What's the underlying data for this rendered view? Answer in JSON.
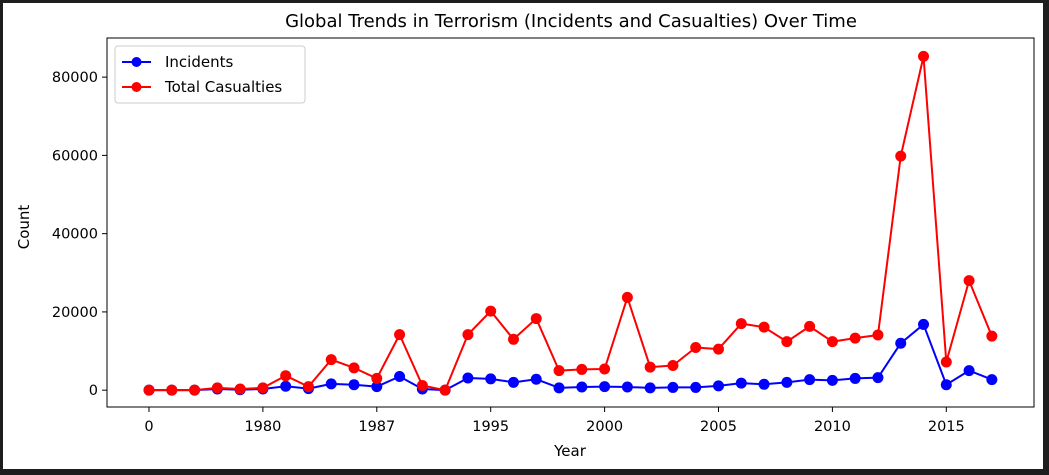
{
  "chart_data": {
    "type": "line",
    "title": "Global Trends in Terrorism (Incidents and Casualties) Over Time",
    "xlabel": "Year",
    "ylabel": "Count",
    "x_tick_labels": [
      "0",
      "1980",
      "1987",
      "1995",
      "2000",
      "2005",
      "2010",
      "2015"
    ],
    "y_tick_labels": [
      "0",
      "20000",
      "40000",
      "60000",
      "80000"
    ],
    "y_ticks": [
      0,
      20000,
      40000,
      60000,
      80000
    ],
    "ylim": [
      -4300,
      90000
    ],
    "grid": false,
    "legend_position": "top-left",
    "series": [
      {
        "name": "Incidents",
        "color": "#0000ff",
        "values": [
          0,
          0,
          0,
          300,
          100,
          300,
          1000,
          400,
          1600,
          1400,
          900,
          3500,
          300,
          0,
          3100,
          2900,
          2000,
          2800,
          600,
          800,
          900,
          800,
          600,
          700,
          700,
          1100,
          1800,
          1500,
          2000,
          2700,
          2500,
          3000,
          3200,
          12000,
          16800,
          1400,
          5000,
          2700
        ]
      },
      {
        "name": "Total Casualties",
        "color": "#ff0000",
        "values": [
          0,
          0,
          0,
          600,
          300,
          600,
          3700,
          900,
          7800,
          5700,
          3000,
          14200,
          1200,
          0,
          14200,
          20200,
          13000,
          18300,
          5000,
          5300,
          5400,
          23700,
          5900,
          6300,
          10900,
          10500,
          17000,
          16100,
          12400,
          16300,
          12400,
          13300,
          14100,
          59800,
          85300,
          7200,
          28000,
          13800
        ]
      }
    ]
  }
}
